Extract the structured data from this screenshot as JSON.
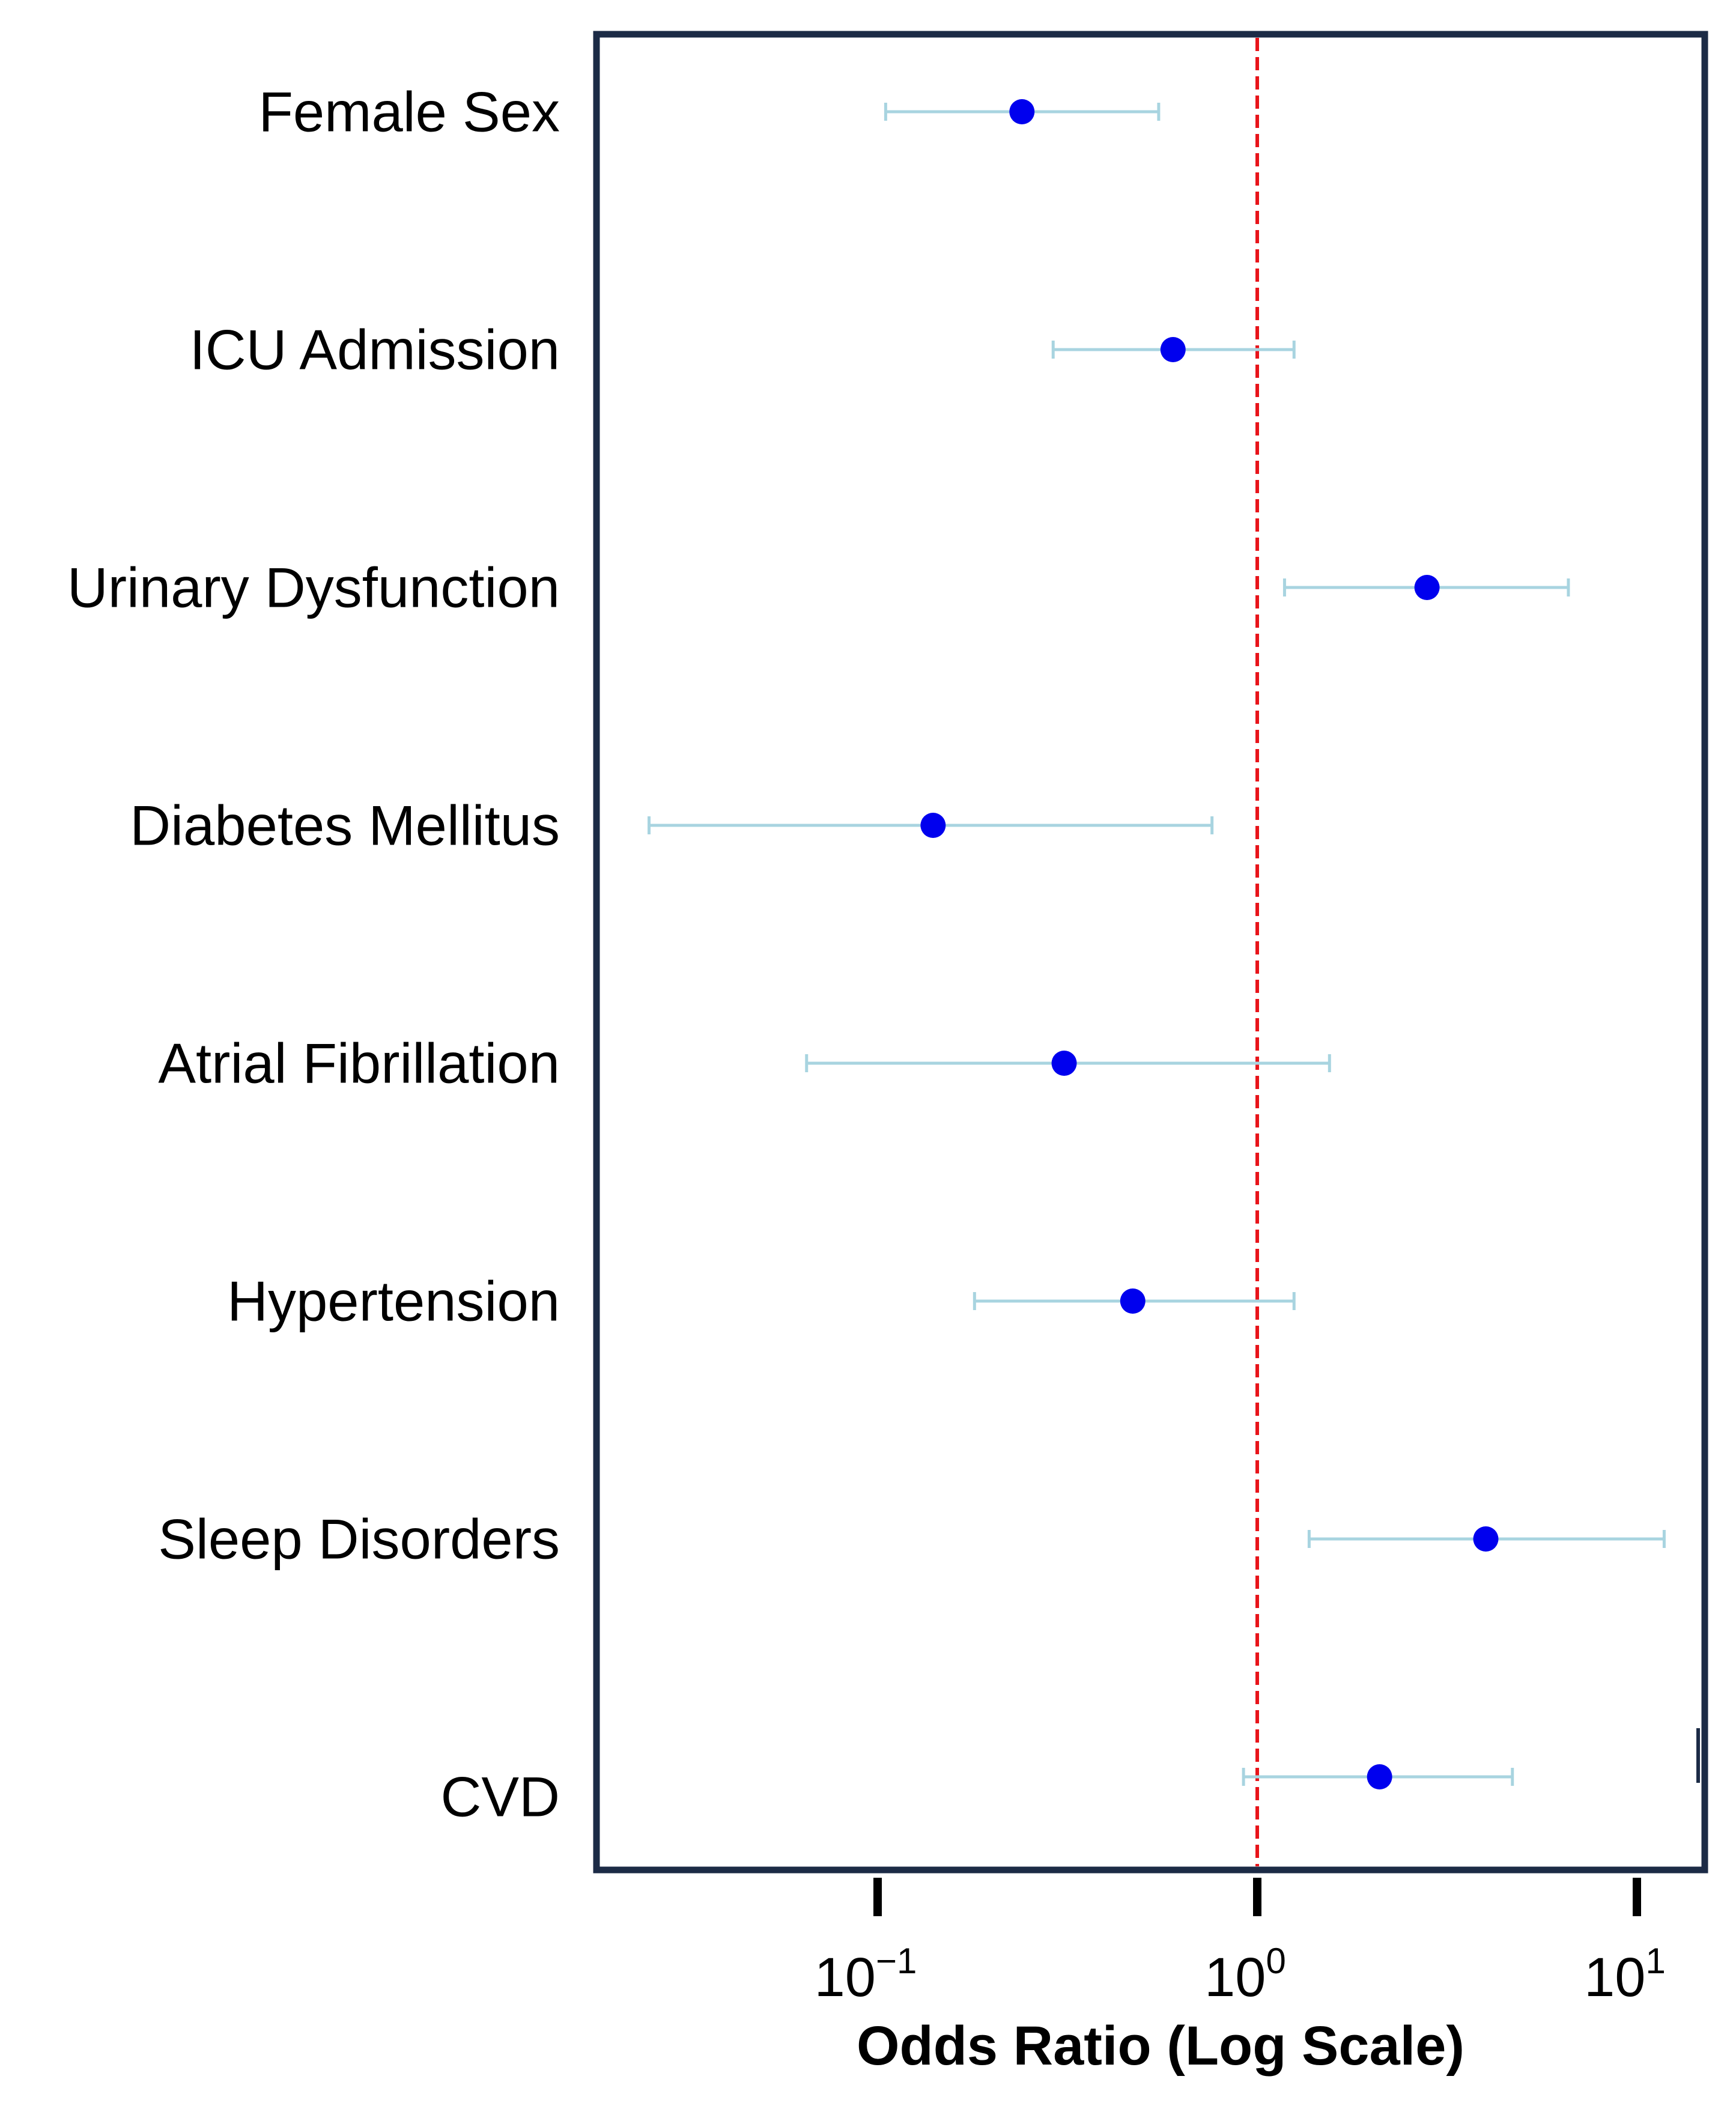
{
  "chart_data": {
    "type": "forest",
    "title": "",
    "xlabel": "Odds Ratio (Log Scale)",
    "ylabel": "",
    "x_scale": "log",
    "xlim": [
      0.021,
      17
    ],
    "reference_line": {
      "x": 1,
      "style": "dashed",
      "color": "#e8141a"
    },
    "x_ticks": [
      {
        "value": 0.1,
        "base": "10",
        "exponent": "−1"
      },
      {
        "value": 1,
        "base": "10",
        "exponent": "0"
      },
      {
        "value": 10,
        "base": "10",
        "exponent": "1"
      }
    ],
    "point_color": "#0000ee",
    "ci_color": "#a8d4e0",
    "frame_color": "#1c2b46",
    "rows": [
      {
        "label": "Female Sex",
        "or": 0.24,
        "ci_low": 0.105,
        "ci_high": 0.55
      },
      {
        "label": "ICU Admission",
        "or": 0.6,
        "ci_low": 0.29,
        "ci_high": 1.25
      },
      {
        "label": "Urinary Dysfunction",
        "or": 2.8,
        "ci_low": 1.18,
        "ci_high": 6.6
      },
      {
        "label": "Diabetes Mellitus",
        "or": 0.14,
        "ci_low": 0.025,
        "ci_high": 0.76
      },
      {
        "label": "Atrial Fibrillation",
        "or": 0.31,
        "ci_low": 0.065,
        "ci_high": 1.55
      },
      {
        "label": "Hypertension",
        "or": 0.47,
        "ci_low": 0.18,
        "ci_high": 1.25
      },
      {
        "label": "Sleep Disorders",
        "or": 4.0,
        "ci_low": 1.37,
        "ci_high": 11.8
      },
      {
        "label": "CVD",
        "or": 2.1,
        "ci_low": 0.92,
        "ci_high": 4.7
      }
    ]
  }
}
